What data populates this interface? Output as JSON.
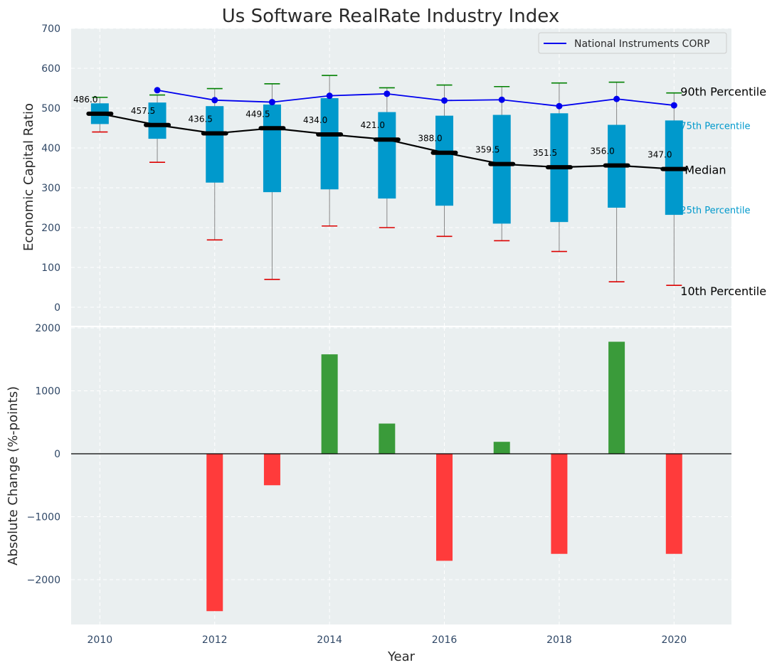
{
  "chart_data": {
    "title": "Us Software RealRate Industry Index",
    "xlabel": "Year",
    "top": {
      "type": "boxplot",
      "ylabel": "Economic Capital Ratio",
      "ylim": [
        0,
        700
      ],
      "yticks": [
        0,
        100,
        200,
        300,
        400,
        500,
        600,
        700
      ],
      "years": [
        2010,
        2011,
        2012,
        2013,
        2014,
        2015,
        2016,
        2017,
        2018,
        2019,
        2020
      ],
      "median": [
        486.0,
        457.5,
        436.5,
        449.5,
        434.0,
        421.0,
        388.0,
        359.5,
        351.5,
        356.0,
        347.0
      ],
      "median_labels": [
        "486.0",
        "457.5",
        "436.5",
        "449.5",
        "434.0",
        "421.0",
        "388.0",
        "359.5",
        "351.5",
        "356.0",
        "347.0"
      ],
      "p25": [
        460,
        423,
        313,
        289,
        296,
        273,
        255,
        210,
        214,
        250,
        232
      ],
      "p75": [
        512,
        514,
        505,
        509,
        525,
        490,
        481,
        483,
        487,
        458,
        469
      ],
      "p10": [
        440,
        364,
        169,
        70,
        204,
        200,
        178,
        167,
        140,
        64,
        55
      ],
      "p90": [
        527,
        533,
        549,
        561,
        582,
        551,
        558,
        554,
        563,
        565,
        538
      ],
      "company": {
        "name": "National Instruments CORP",
        "years": [
          2011,
          2012,
          2013,
          2014,
          2015,
          2016,
          2017,
          2018,
          2019,
          2020
        ],
        "values": [
          545,
          520,
          515,
          531,
          536,
          519,
          521,
          505,
          523,
          507
        ]
      },
      "annotations": {
        "p90": "90th Percentile",
        "p75": "75th Percentile",
        "median": "Median",
        "p25": "25th Percentile",
        "p10": "10th Percentile"
      },
      "legend_position": "top-right"
    },
    "bottom": {
      "type": "bar",
      "ylabel": "Absolute Change (%-points)",
      "ylim": [
        -2700,
        2000
      ],
      "yticks": [
        -2000,
        -1000,
        0,
        1000,
        2000
      ],
      "ytick_labels": [
        "−2000",
        "−1000",
        "0",
        "1000",
        "2000"
      ],
      "years": [
        2011,
        2012,
        2013,
        2014,
        2015,
        2016,
        2017,
        2018,
        2019,
        2020
      ],
      "values": [
        0,
        -2500,
        -500,
        1580,
        480,
        -1700,
        190,
        -1590,
        1780,
        -1590
      ]
    },
    "xlim": [
      2009.5,
      2021.0
    ],
    "xticks": [
      2010,
      2012,
      2014,
      2016,
      2018,
      2020
    ],
    "colors": {
      "box": "#0099cc",
      "median": "#000000",
      "company": "#0000ee",
      "p90_cap": "#008000",
      "p10_cap": "#dd0000",
      "positive": "#3a9b3a",
      "negative": "#ff3b3b",
      "panel_bg": "#eaeff0"
    }
  }
}
